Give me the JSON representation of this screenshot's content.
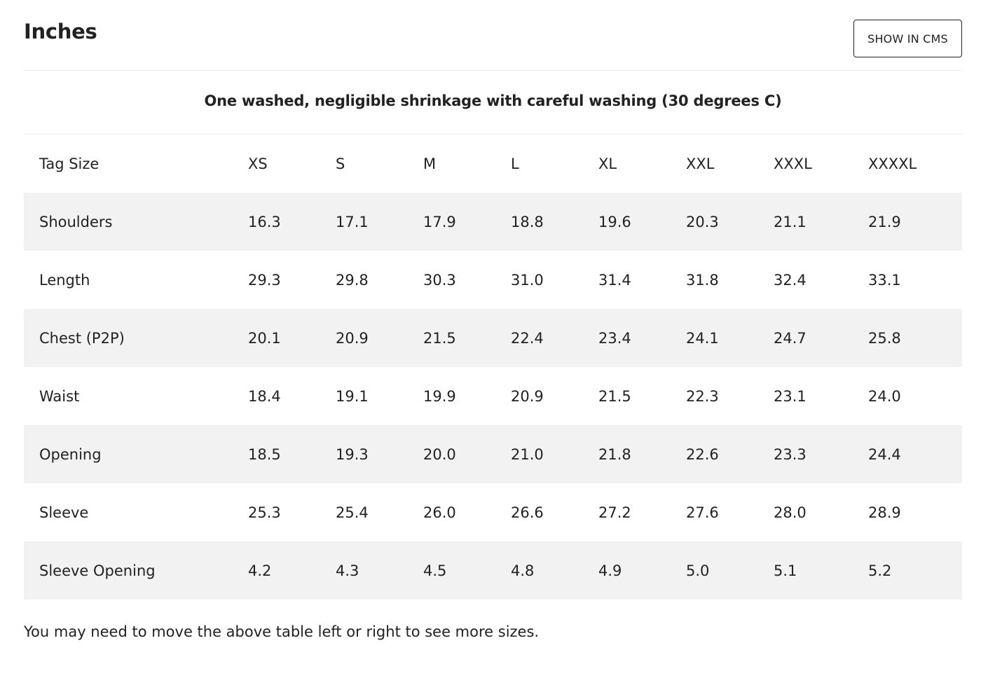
{
  "header": {
    "title": "Inches",
    "cms_button_label": "SHOW IN CMS"
  },
  "caption": "One washed, negligible shrinkage with careful washing (30 degrees C)",
  "table": {
    "columns": [
      "Tag Size",
      "XS",
      "S",
      "M",
      "L",
      "XL",
      "XXL",
      "XXXL",
      "XXXXL"
    ],
    "rows": [
      {
        "label": "Shoulders",
        "values": [
          "16.3",
          "17.1",
          "17.9",
          "18.8",
          "19.6",
          "20.3",
          "21.1",
          "21.9"
        ]
      },
      {
        "label": "Length",
        "values": [
          "29.3",
          "29.8",
          "30.3",
          "31.0",
          "31.4",
          "31.8",
          "32.4",
          "33.1"
        ]
      },
      {
        "label": "Chest (P2P)",
        "values": [
          "20.1",
          "20.9",
          "21.5",
          "22.4",
          "23.4",
          "24.1",
          "24.7",
          "25.8"
        ]
      },
      {
        "label": "Waist",
        "values": [
          "18.4",
          "19.1",
          "19.9",
          "20.9",
          "21.5",
          "22.3",
          "23.1",
          "24.0"
        ]
      },
      {
        "label": "Opening",
        "values": [
          "18.5",
          "19.3",
          "20.0",
          "21.0",
          "21.8",
          "22.6",
          "23.3",
          "24.4"
        ]
      },
      {
        "label": "Sleeve",
        "values": [
          "25.3",
          "25.4",
          "26.0",
          "26.6",
          "27.2",
          "27.6",
          "28.0",
          "28.9"
        ]
      },
      {
        "label": "Sleeve Opening",
        "values": [
          "4.2",
          "4.3",
          "4.5",
          "4.8",
          "4.9",
          "5.0",
          "5.1",
          "5.2"
        ]
      }
    ]
  },
  "note": "You may need to move the above table left or right to see more sizes."
}
